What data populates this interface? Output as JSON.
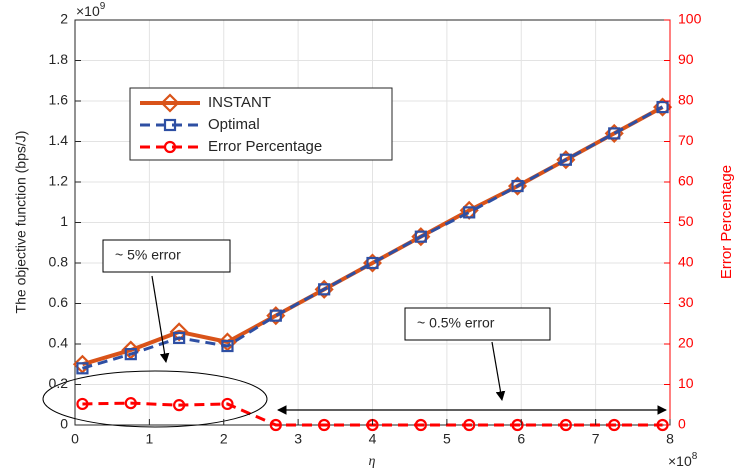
{
  "chart_data": {
    "type": "line",
    "xlabel": "η",
    "ylabel": "The objective function (bps/J)",
    "y2label": "Error Percentage",
    "x_multiplier": "×10",
    "x_multiplier_power": "8",
    "y_multiplier": "×10",
    "y_multiplier_power": "9",
    "x": [
      0.1,
      0.75,
      1.4,
      2.05,
      2.7,
      3.35,
      4.0,
      4.65,
      5.3,
      5.95,
      6.6,
      7.25,
      7.9
    ],
    "series": [
      {
        "name": "INSTANT",
        "color": "#d95319",
        "marker": "diamond",
        "dash": false,
        "values": [
          0.3,
          0.37,
          0.46,
          0.41,
          0.54,
          0.67,
          0.8,
          0.93,
          1.06,
          1.18,
          1.31,
          1.44,
          1.57
        ]
      },
      {
        "name": "Optimal",
        "color": "#2e4fa3",
        "marker": "square",
        "dash": true,
        "values": [
          0.28,
          0.35,
          0.43,
          0.39,
          0.54,
          0.67,
          0.8,
          0.93,
          1.05,
          1.18,
          1.31,
          1.44,
          1.57
        ]
      },
      {
        "name": "Error Percentage",
        "color": "#ff0000",
        "marker": "circle",
        "dash": true,
        "axis": "y2",
        "values": [
          5.2,
          5.4,
          4.9,
          5.2,
          0,
          0,
          0,
          0,
          0,
          0,
          0,
          0,
          0
        ]
      }
    ],
    "xlim": [
      0,
      8
    ],
    "xticks": [
      0,
      1,
      2,
      3,
      4,
      5,
      6,
      7,
      8
    ],
    "ylim": [
      0,
      2
    ],
    "yticks": [
      0,
      0.2,
      0.4,
      0.6,
      0.8,
      1,
      1.2,
      1.4,
      1.6,
      1.8,
      2
    ],
    "y2lim": [
      0,
      100
    ],
    "y2ticks": [
      0,
      10,
      20,
      30,
      40,
      50,
      60,
      70,
      80,
      90,
      100
    ],
    "grid": true,
    "annotations": [
      "~ 5% error",
      "~ 0.5% error"
    ]
  }
}
